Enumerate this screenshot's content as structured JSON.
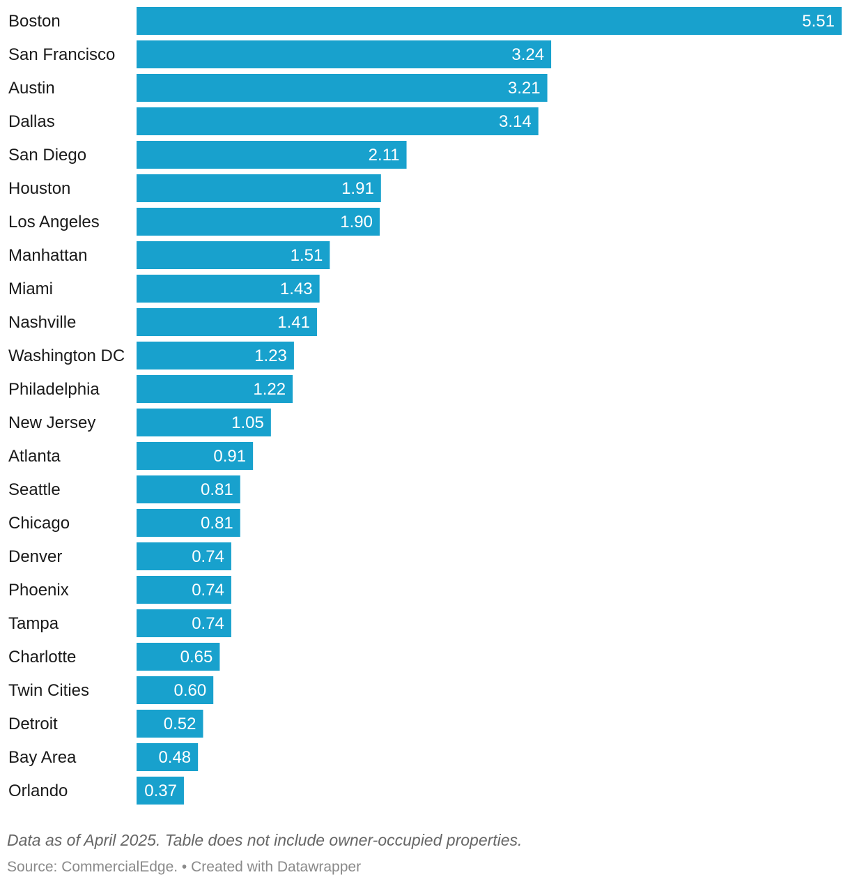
{
  "chart_data": {
    "type": "bar",
    "orientation": "horizontal",
    "title": "",
    "xlabel": "",
    "ylabel": "",
    "categories": [
      "Boston",
      "San Francisco",
      "Austin",
      "Dallas",
      "San Diego",
      "Houston",
      "Los Angeles",
      "Manhattan",
      "Miami",
      "Nashville",
      "Washington DC",
      "Philadelphia",
      "New Jersey",
      "Atlanta",
      "Seattle",
      "Chicago",
      "Denver",
      "Phoenix",
      "Tampa",
      "Charlotte",
      "Twin Cities",
      "Detroit",
      "Bay Area",
      "Orlando"
    ],
    "values": [
      5.51,
      3.24,
      3.21,
      3.14,
      2.11,
      1.91,
      1.9,
      1.51,
      1.43,
      1.41,
      1.23,
      1.22,
      1.05,
      0.91,
      0.81,
      0.81,
      0.74,
      0.74,
      0.74,
      0.65,
      0.6,
      0.52,
      0.48,
      0.37
    ],
    "value_labels": [
      "5.51",
      "3.24",
      "3.21",
      "3.14",
      "2.11",
      "1.91",
      "1.90",
      "1.51",
      "1.43",
      "1.41",
      "1.23",
      "1.22",
      "1.05",
      "0.91",
      "0.81",
      "0.81",
      "0.74",
      "0.74",
      "0.74",
      "0.65",
      "0.60",
      "0.52",
      "0.48",
      "0.37"
    ],
    "xlim": [
      0,
      5.51
    ],
    "grid": false,
    "legend": "none",
    "bar_color": "#18a1cd"
  },
  "notes": {
    "footnote": "Data as of April 2025. Table does not include owner-occupied properties.",
    "source": "Source: CommercialEdge. • Created with Datawrapper"
  }
}
